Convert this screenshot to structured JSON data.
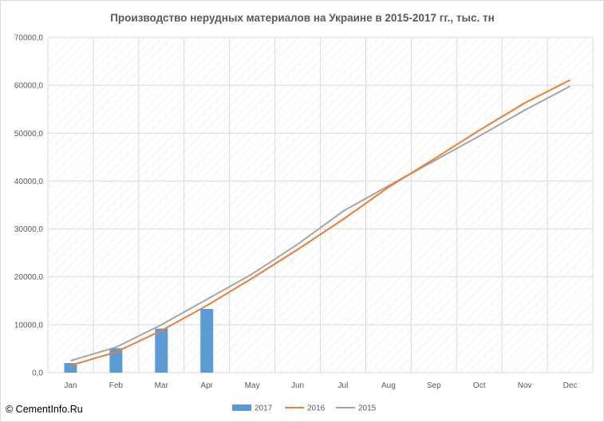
{
  "watermark": "© CementInfo.Ru",
  "chart_data": {
    "type": "bar+line",
    "title": "Производство нерудных материалов на Украине  в 2015-2017  гг., тыс. тн",
    "categories": [
      "Jan",
      "Feb",
      "Mar",
      "Apr",
      "May",
      "Jun",
      "Jul",
      "Aug",
      "Sep",
      "Oct",
      "Nov",
      "Dec"
    ],
    "y_ticks": [
      "0,0",
      "10000,0",
      "20000,0",
      "30000,0",
      "40000,0",
      "50000,0",
      "60000,0",
      "70000,0"
    ],
    "ylim": [
      0,
      70000
    ],
    "grid": true,
    "legend_position": "bottom",
    "series": [
      {
        "name": "2017",
        "kind": "bar",
        "color": "#5b9bd5",
        "values": [
          2000,
          5100,
          9200,
          13300,
          null,
          null,
          null,
          null,
          null,
          null,
          null,
          null
        ]
      },
      {
        "name": "2016",
        "kind": "line",
        "color": "#ed7d31",
        "values": [
          1500,
          4300,
          8800,
          14000,
          19700,
          25700,
          32000,
          38700,
          44600,
          50600,
          56300,
          61100
        ]
      },
      {
        "name": "2015",
        "kind": "line",
        "color": "#a5a5a5",
        "values": [
          2500,
          5300,
          10000,
          15300,
          20600,
          26800,
          33700,
          39000,
          44200,
          49400,
          54800,
          59800
        ]
      }
    ]
  }
}
